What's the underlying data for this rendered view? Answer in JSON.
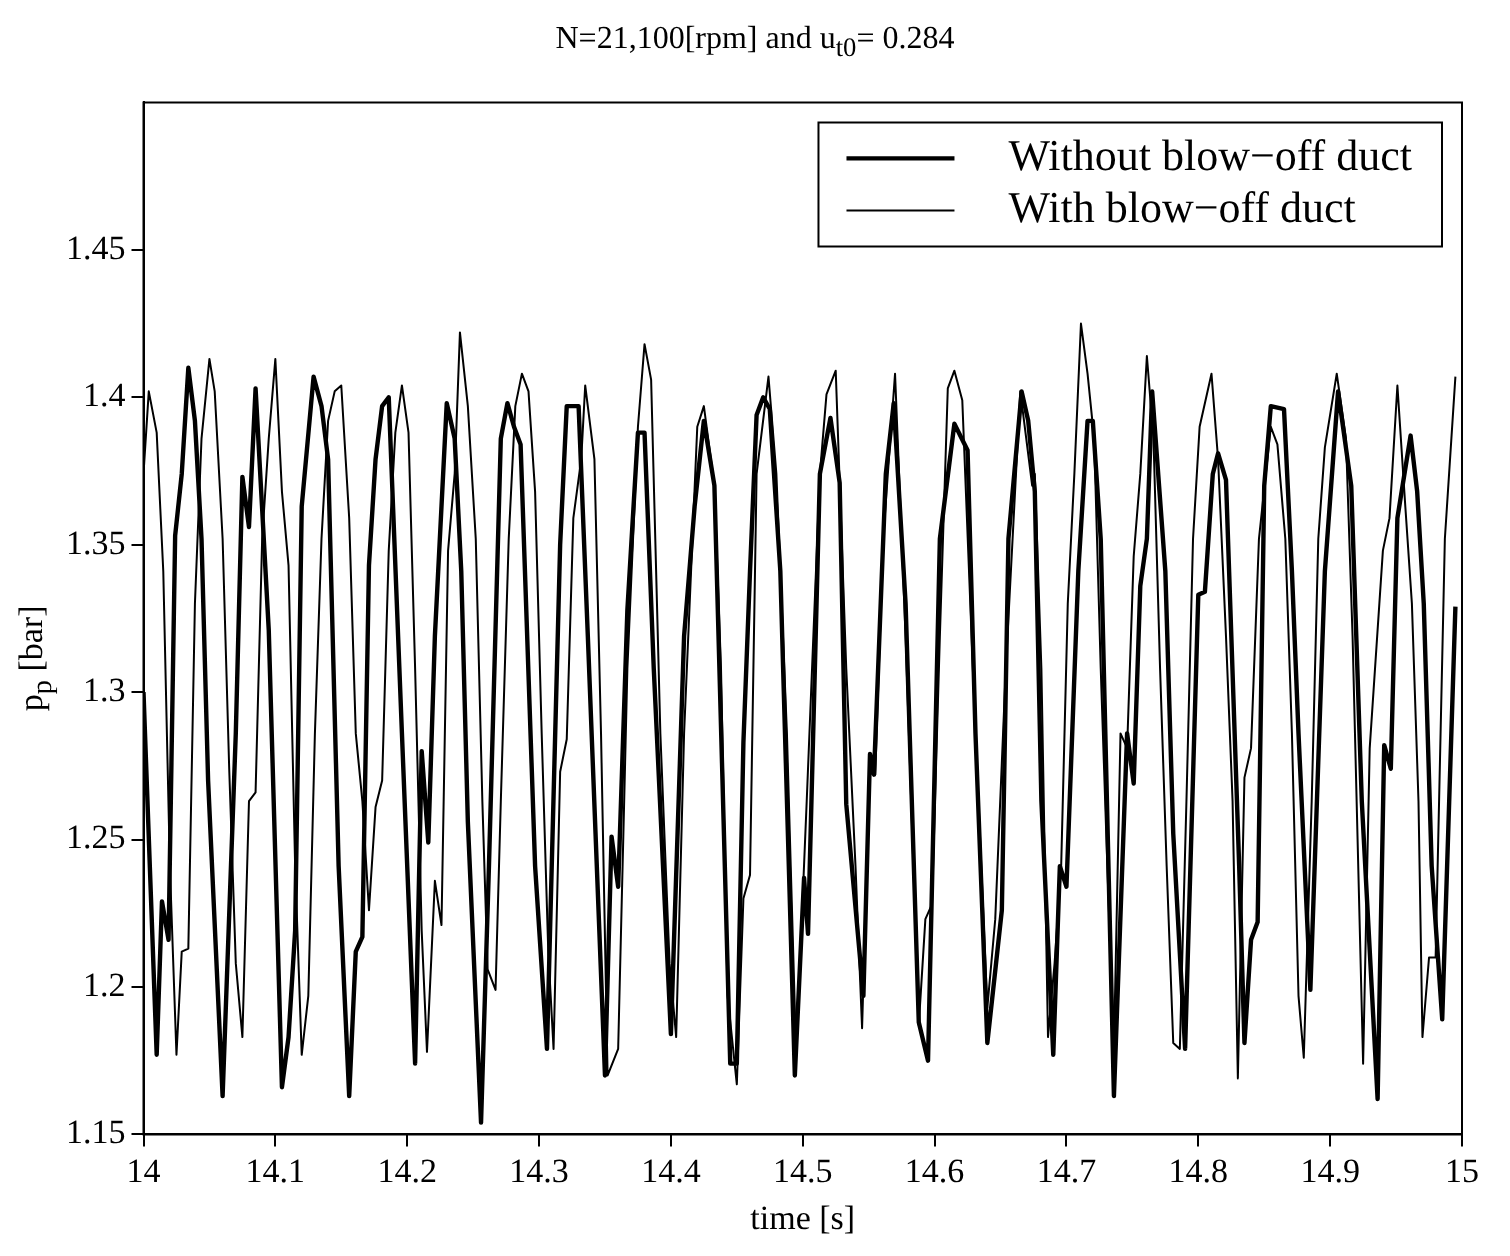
{
  "chart_data": {
    "type": "line",
    "title": "N=21,100[rpm] and u$_{t0}$= 0.284",
    "xlabel": "time [s]",
    "ylabel": "p$_{p}$ [bar]",
    "xlim": [
      14,
      15
    ],
    "xticks": [
      14,
      14.1,
      14.2,
      14.3,
      14.4,
      14.5,
      14.6,
      14.7,
      14.8,
      14.9,
      15
    ],
    "ylim": [
      1.15,
      1.5
    ],
    "yticks": [
      1.15,
      1.2,
      1.25,
      1.3,
      1.35,
      1.4,
      1.45
    ],
    "grid": false,
    "legend": "top right",
    "marker": "none",
    "line_style": "solid",
    "series": [
      {
        "name": "Without blow−off duct",
        "color": "#000000",
        "x": [
          14.0,
          14.01,
          14.014,
          14.019,
          14.024,
          14.029,
          14.034,
          14.039,
          14.044,
          14.049,
          14.06,
          14.07,
          14.075,
          14.08,
          14.085,
          14.095,
          14.105,
          14.11,
          14.115,
          14.12,
          14.129,
          14.135,
          14.14,
          14.148,
          14.156,
          14.161,
          14.166,
          14.171,
          14.176,
          14.181,
          14.186,
          14.196,
          14.206,
          14.211,
          14.216,
          14.221,
          14.23,
          14.236,
          14.241,
          14.246,
          14.256,
          14.262,
          14.271,
          14.276,
          14.281,
          14.286,
          14.297,
          14.306,
          14.316,
          14.321,
          14.33,
          14.337,
          14.35,
          14.355,
          14.36,
          14.367,
          14.375,
          14.38,
          14.387,
          14.4,
          14.41,
          14.418,
          14.425,
          14.433,
          14.445,
          14.45,
          14.455,
          14.46,
          14.465,
          14.47,
          14.475,
          14.483,
          14.494,
          14.501,
          14.504,
          14.513,
          14.521,
          14.528,
          14.533,
          14.546,
          14.551,
          14.554,
          14.563,
          14.569,
          14.578,
          14.588,
          14.595,
          14.604,
          14.615,
          14.625,
          14.631,
          14.64,
          14.651,
          14.656,
          14.666,
          14.671,
          14.676,
          14.681,
          14.69,
          14.695,
          14.7,
          14.709,
          14.716,
          14.72,
          14.726,
          14.736,
          14.746,
          14.751,
          14.756,
          14.761,
          14.765,
          14.775,
          14.781,
          14.79,
          14.8,
          14.805,
          14.811,
          14.815,
          14.821,
          14.831,
          14.835,
          14.84,
          14.845,
          14.85,
          14.855,
          14.865,
          14.871,
          14.876,
          14.885,
          14.896,
          14.906,
          14.916,
          14.924,
          14.936,
          14.941,
          14.946,
          14.951,
          14.961,
          14.966,
          14.971,
          14.977,
          14.985,
          14.995
        ],
        "values": [
          1.3,
          1.177,
          1.229,
          1.216,
          1.353,
          1.374,
          1.41,
          1.392,
          1.352,
          1.27,
          1.163,
          1.286,
          1.373,
          1.356,
          1.403,
          1.321,
          1.166,
          1.183,
          1.219,
          1.363,
          1.407,
          1.397,
          1.379,
          1.241,
          1.163,
          1.212,
          1.217,
          1.343,
          1.379,
          1.397,
          1.4,
          1.286,
          1.174,
          1.28,
          1.249,
          1.319,
          1.398,
          1.386,
          1.341,
          1.256,
          1.154,
          1.241,
          1.386,
          1.398,
          1.39,
          1.384,
          1.241,
          1.179,
          1.35,
          1.397,
          1.397,
          1.319,
          1.17,
          1.251,
          1.234,
          1.328,
          1.388,
          1.388,
          1.308,
          1.184,
          1.319,
          1.363,
          1.392,
          1.37,
          1.174,
          1.174,
          1.283,
          1.341,
          1.394,
          1.4,
          1.396,
          1.341,
          1.17,
          1.237,
          1.218,
          1.374,
          1.393,
          1.371,
          1.262,
          1.197,
          1.279,
          1.272,
          1.374,
          1.398,
          1.33,
          1.188,
          1.175,
          1.352,
          1.391,
          1.382,
          1.286,
          1.181,
          1.226,
          1.352,
          1.402,
          1.392,
          1.368,
          1.263,
          1.177,
          1.241,
          1.234,
          1.341,
          1.392,
          1.392,
          1.352,
          1.163,
          1.286,
          1.269,
          1.336,
          1.352,
          1.402,
          1.341,
          1.252,
          1.179,
          1.333,
          1.334,
          1.374,
          1.381,
          1.372,
          1.241,
          1.181,
          1.216,
          1.222,
          1.37,
          1.397,
          1.396,
          1.341,
          1.286,
          1.199,
          1.341,
          1.402,
          1.37,
          1.263,
          1.162,
          1.282,
          1.274,
          1.359,
          1.387,
          1.368,
          1.33,
          1.241,
          1.189,
          1.329
        ]
      },
      {
        "name": "With blow−off duct",
        "color": "#000000",
        "x": [
          14.0,
          14.004,
          14.01,
          14.015,
          14.02,
          14.025,
          14.029,
          14.034,
          14.039,
          14.044,
          14.05,
          14.054,
          14.06,
          14.065,
          14.07,
          14.075,
          14.08,
          14.085,
          14.09,
          14.095,
          14.1,
          14.105,
          14.11,
          14.115,
          14.12,
          14.125,
          14.13,
          14.135,
          14.14,
          14.145,
          14.15,
          14.156,
          14.161,
          14.166,
          14.171,
          14.176,
          14.181,
          14.186,
          14.191,
          14.196,
          14.201,
          14.206,
          14.211,
          14.215,
          14.221,
          14.226,
          14.231,
          14.236,
          14.24,
          14.246,
          14.252,
          14.257,
          14.261,
          14.267,
          14.271,
          14.277,
          14.282,
          14.287,
          14.292,
          14.297,
          14.302,
          14.307,
          14.311,
          14.316,
          14.321,
          14.326,
          14.332,
          14.335,
          14.342,
          14.347,
          14.352,
          14.36,
          14.367,
          14.375,
          14.38,
          14.385,
          14.392,
          14.399,
          14.404,
          14.41,
          14.42,
          14.425,
          14.433,
          14.438,
          14.443,
          14.45,
          14.455,
          14.46,
          14.465,
          14.474,
          14.48,
          14.488,
          14.495,
          14.503,
          14.513,
          14.518,
          14.525,
          14.533,
          14.54,
          14.545,
          14.551,
          14.555,
          14.561,
          14.57,
          14.578,
          14.588,
          14.593,
          14.598,
          14.604,
          14.61,
          14.615,
          14.621,
          14.629,
          14.64,
          14.646,
          14.654,
          14.665,
          14.674,
          14.676,
          14.681,
          14.686,
          14.691,
          14.696,
          14.701,
          14.706,
          14.711,
          14.716,
          14.721,
          14.726,
          14.731,
          14.736,
          14.741,
          14.746,
          14.751,
          14.756,
          14.761,
          14.766,
          14.771,
          14.776,
          14.781,
          14.786,
          14.791,
          14.796,
          14.801,
          14.81,
          14.815,
          14.821,
          14.826,
          14.83,
          14.835,
          14.84,
          14.846,
          14.855,
          14.86,
          14.866,
          14.871,
          14.876,
          14.88,
          14.886,
          14.891,
          14.896,
          14.905,
          14.912,
          14.917,
          14.925,
          14.93,
          14.94,
          14.945,
          14.951,
          14.957,
          14.962,
          14.967,
          14.97,
          14.975,
          14.98,
          14.987,
          14.995
        ],
        "values": [
          1.374,
          1.402,
          1.388,
          1.341,
          1.241,
          1.177,
          1.212,
          1.213,
          1.33,
          1.386,
          1.413,
          1.402,
          1.352,
          1.274,
          1.208,
          1.183,
          1.263,
          1.266,
          1.352,
          1.386,
          1.413,
          1.368,
          1.343,
          1.241,
          1.177,
          1.197,
          1.286,
          1.352,
          1.392,
          1.402,
          1.404,
          1.359,
          1.286,
          1.263,
          1.226,
          1.261,
          1.27,
          1.348,
          1.388,
          1.404,
          1.388,
          1.308,
          1.219,
          1.178,
          1.236,
          1.221,
          1.348,
          1.374,
          1.422,
          1.397,
          1.352,
          1.263,
          1.206,
          1.199,
          1.263,
          1.352,
          1.397,
          1.408,
          1.402,
          1.368,
          1.286,
          1.212,
          1.179,
          1.273,
          1.284,
          1.359,
          1.379,
          1.404,
          1.379,
          1.286,
          1.17,
          1.179,
          1.308,
          1.39,
          1.418,
          1.406,
          1.286,
          1.208,
          1.183,
          1.286,
          1.39,
          1.397,
          1.37,
          1.308,
          1.197,
          1.167,
          1.23,
          1.238,
          1.374,
          1.407,
          1.374,
          1.286,
          1.177,
          1.263,
          1.374,
          1.401,
          1.409,
          1.308,
          1.241,
          1.186,
          1.279,
          1.272,
          1.352,
          1.408,
          1.319,
          1.187,
          1.223,
          1.228,
          1.319,
          1.403,
          1.409,
          1.399,
          1.308,
          1.193,
          1.223,
          1.308,
          1.402,
          1.37,
          1.374,
          1.308,
          1.183,
          1.208,
          1.241,
          1.33,
          1.374,
          1.425,
          1.408,
          1.386,
          1.308,
          1.241,
          1.179,
          1.286,
          1.281,
          1.346,
          1.374,
          1.414,
          1.386,
          1.308,
          1.241,
          1.181,
          1.179,
          1.263,
          1.352,
          1.39,
          1.408,
          1.379,
          1.319,
          1.263,
          1.169,
          1.271,
          1.281,
          1.352,
          1.39,
          1.384,
          1.352,
          1.286,
          1.197,
          1.176,
          1.263,
          1.352,
          1.383,
          1.408,
          1.386,
          1.319,
          1.174,
          1.281,
          1.348,
          1.359,
          1.404,
          1.363,
          1.33,
          1.263,
          1.183,
          1.21,
          1.21,
          1.352,
          1.407
        ]
      }
    ]
  }
}
